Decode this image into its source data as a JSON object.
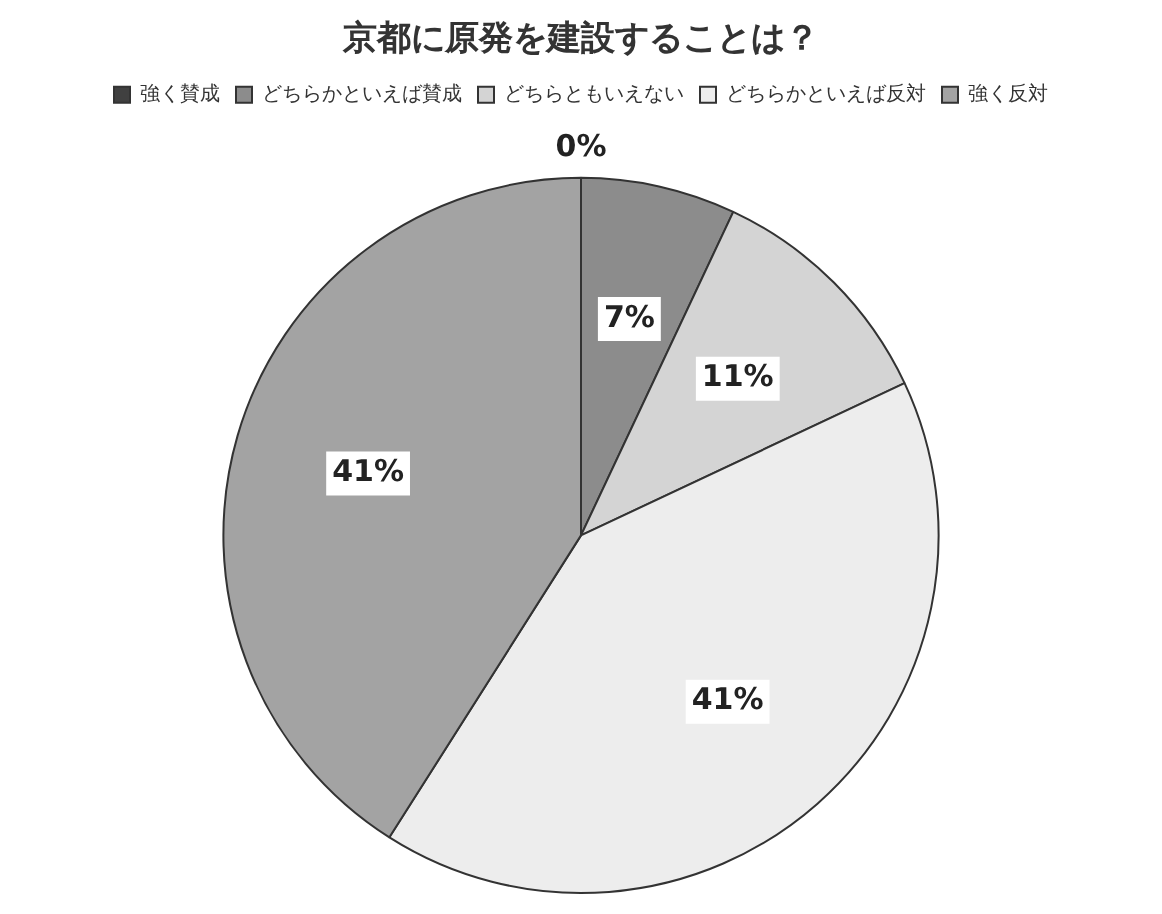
{
  "chart_data": {
    "type": "pie",
    "title": "京都に原発を建設することは？",
    "categories": [
      "強く賛成",
      "どちらかといえば賛成",
      "どちらともいえない",
      "どちらかといえば反対",
      "強く反対"
    ],
    "values": [
      0,
      7,
      11,
      41,
      41
    ],
    "colors": [
      "#404040",
      "#8c8c8c",
      "#d4d4d4",
      "#ededed",
      "#a3a3a3"
    ],
    "value_labels": [
      "0%",
      "7%",
      "11%",
      "41%",
      "41%"
    ],
    "legend": "top"
  }
}
